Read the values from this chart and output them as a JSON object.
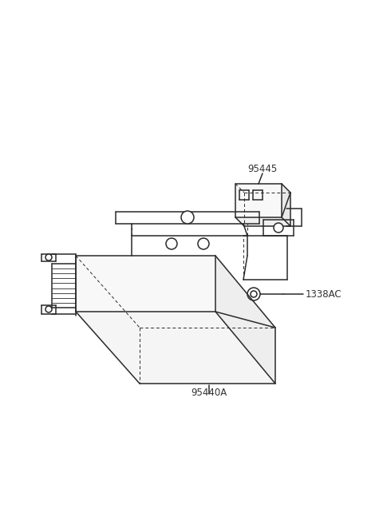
{
  "bg_color": "#ffffff",
  "line_color": "#2a2a2a",
  "line_width": 1.1,
  "font_size": 8.5,
  "font_color": "#333333",
  "label_95440A": "95440A",
  "label_1338AC": "1338AC",
  "label_95445": "95445"
}
